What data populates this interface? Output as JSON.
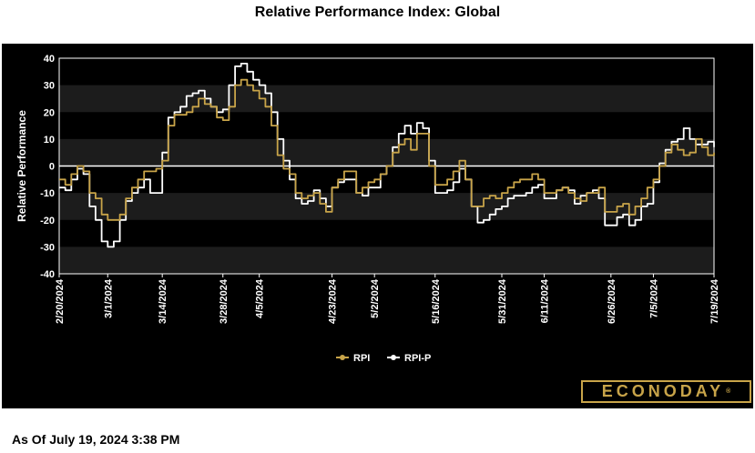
{
  "page": {
    "title": "Relative Performance Index: Global",
    "footer": "As Of July 19, 2024 3:38 PM",
    "brand": "ECONODAY",
    "brand_mark": "®"
  },
  "chart_data": {
    "type": "line",
    "title": "Relative Performance Index: Global",
    "xlabel": "",
    "ylabel": "Relative Performance",
    "ylim": [
      -40,
      40
    ],
    "yticks": [
      40,
      30,
      20,
      10,
      0,
      -10,
      -20,
      -30,
      -40
    ],
    "ytick_labels": [
      "40",
      "30",
      "20",
      "10",
      "0",
      "-10",
      "-20",
      "-30",
      "-40"
    ],
    "x_dates": [
      "2/20/2024",
      "2/21/2024",
      "2/22/2024",
      "2/23/2024",
      "2/26/2024",
      "2/27/2024",
      "2/28/2024",
      "2/29/2024",
      "3/1/2024",
      "3/4/2024",
      "3/5/2024",
      "3/6/2024",
      "3/7/2024",
      "3/8/2024",
      "3/11/2024",
      "3/12/2024",
      "3/13/2024",
      "3/14/2024",
      "3/15/2024",
      "3/18/2024",
      "3/19/2024",
      "3/20/2024",
      "3/21/2024",
      "3/22/2024",
      "3/25/2024",
      "3/26/2024",
      "3/27/2024",
      "3/28/2024",
      "3/29/2024",
      "4/1/2024",
      "4/2/2024",
      "4/3/2024",
      "4/4/2024",
      "4/5/2024",
      "4/8/2024",
      "4/9/2024",
      "4/10/2024",
      "4/11/2024",
      "4/12/2024",
      "4/15/2024",
      "4/16/2024",
      "4/17/2024",
      "4/18/2024",
      "4/19/2024",
      "4/22/2024",
      "4/23/2024",
      "4/24/2024",
      "4/25/2024",
      "4/26/2024",
      "4/29/2024",
      "4/30/2024",
      "5/1/2024",
      "5/2/2024",
      "5/3/2024",
      "5/6/2024",
      "5/7/2024",
      "5/8/2024",
      "5/9/2024",
      "5/10/2024",
      "5/13/2024",
      "5/14/2024",
      "5/15/2024",
      "5/16/2024",
      "5/17/2024",
      "5/20/2024",
      "5/21/2024",
      "5/22/2024",
      "5/23/2024",
      "5/24/2024",
      "5/27/2024",
      "5/28/2024",
      "5/29/2024",
      "5/30/2024",
      "5/31/2024",
      "6/3/2024",
      "6/4/2024",
      "6/5/2024",
      "6/6/2024",
      "6/7/2024",
      "6/10/2024",
      "6/11/2024",
      "6/12/2024",
      "6/13/2024",
      "6/14/2024",
      "6/17/2024",
      "6/18/2024",
      "6/19/2024",
      "6/20/2024",
      "6/21/2024",
      "6/24/2024",
      "6/25/2024",
      "6/26/2024",
      "6/27/2024",
      "6/28/2024",
      "7/1/2024",
      "7/2/2024",
      "7/3/2024",
      "7/4/2024",
      "7/5/2024",
      "7/8/2024",
      "7/9/2024",
      "7/10/2024",
      "7/11/2024",
      "7/12/2024",
      "7/15/2024",
      "7/16/2024",
      "7/17/2024",
      "7/18/2024",
      "7/19/2024"
    ],
    "xtick_labels": [
      "2/20/2024",
      "3/1/2024",
      "3/14/2024",
      "3/28/2024",
      "4/5/2024",
      "4/23/2024",
      "5/2/2024",
      "5/16/2024",
      "5/31/2024",
      "6/11/2024",
      "6/26/2024",
      "7/5/2024",
      "7/19/2024"
    ],
    "legend_position": "bottom-center",
    "grid": "alternating horizontal bands",
    "colors": {
      "background": "#000000",
      "band": "#1c1c1c",
      "rpi": "#c8a449",
      "rpi_p": "#ffffff",
      "zero_line": "#ffffff",
      "axis_text": "#ffffff"
    },
    "series": [
      {
        "name": "RPI",
        "color": "#c8a449",
        "values": [
          -5,
          -7,
          -3,
          0,
          -2,
          -10,
          -12,
          -18,
          -20,
          -20,
          -18,
          -12,
          -8,
          -5,
          -2,
          -2,
          -1,
          2,
          15,
          19,
          19,
          20,
          22,
          25,
          23,
          22,
          18,
          17,
          22,
          30,
          32,
          30,
          28,
          25,
          22,
          15,
          4,
          -1,
          -3,
          -10,
          -12,
          -11,
          -10,
          -14,
          -17,
          -8,
          -5,
          -2,
          -2,
          -10,
          -8,
          -6,
          -5,
          -3,
          0,
          5,
          8,
          10,
          6,
          12,
          12,
          0,
          -7,
          -7,
          -5,
          -2,
          2,
          -5,
          -15,
          -15,
          -12,
          -11,
          -12,
          -10,
          -8,
          -6,
          -5,
          -5,
          -3,
          -5,
          -10,
          -10,
          -9,
          -8,
          -10,
          -12,
          -13,
          -10,
          -10,
          -8,
          -17,
          -17,
          -15,
          -14,
          -18,
          -15,
          -12,
          -8,
          -5,
          0,
          5,
          8,
          6,
          4,
          5,
          10,
          7,
          4,
          5
        ],
        "label_text": "RPI"
      },
      {
        "name": "RPI-P",
        "color": "#ffffff",
        "values": [
          -8,
          -9,
          -5,
          -1,
          -3,
          -15,
          -20,
          -28,
          -30,
          -28,
          -20,
          -13,
          -10,
          -8,
          -5,
          -10,
          -10,
          5,
          18,
          20,
          22,
          26,
          27,
          28,
          25,
          22,
          20,
          21,
          30,
          37,
          38,
          35,
          32,
          30,
          27,
          20,
          10,
          2,
          -5,
          -12,
          -14,
          -13,
          -9,
          -12,
          -15,
          -8,
          -6,
          -5,
          -5,
          -10,
          -11,
          -8,
          -8,
          -3,
          0,
          7,
          12,
          15,
          12,
          16,
          14,
          2,
          -10,
          -10,
          -9,
          -6,
          -1,
          -5,
          -15,
          -21,
          -20,
          -18,
          -16,
          -15,
          -12,
          -11,
          -11,
          -10,
          -8,
          -7,
          -12,
          -12,
          -9,
          -8,
          -9,
          -14,
          -11,
          -10,
          -9,
          -12,
          -22,
          -22,
          -19,
          -18,
          -22,
          -20,
          -15,
          -14,
          -6,
          1,
          6,
          9,
          10,
          14,
          10,
          8,
          8,
          9,
          7
        ],
        "label_text": "RPI-P"
      }
    ]
  }
}
